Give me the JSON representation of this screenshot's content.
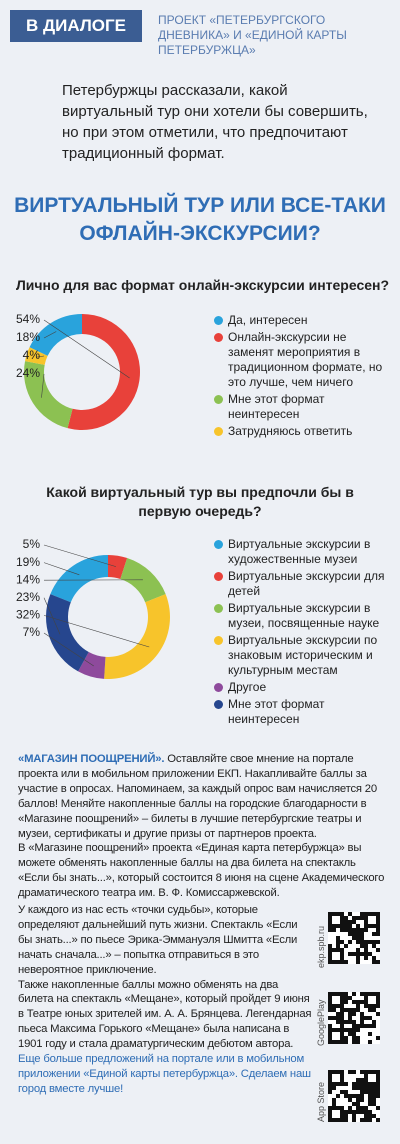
{
  "header": {
    "badge": "В ДИАЛОГЕ",
    "project": "ПРОЕКТ «ПЕТЕРБУРГСКОГО ДНЕВНИКА» И «ЕДИНОЙ КАРТЫ ПЕТЕРБУРЖЦА»"
  },
  "intro": "Петербуржцы рассказали, какой виртуальный тур они хотели бы совершить, но при этом отметили, что предпочитают традиционный формат.",
  "title": "ВИРТУАЛЬНЫЙ ТУР ИЛИ ВСЕ-ТАКИ ОФЛАЙН-ЭКСКУРСИИ?",
  "chart_data": [
    {
      "type": "donut",
      "title": "Лично для вас формат онлайн-экскурсии интересен?",
      "categories": [
        "Да, интересен",
        "Онлайн-экскурсии не заменят мероприятия в традиционном формате, но это лучше, чем ничего",
        "Мне этот формат неинтересен",
        "Затрудняюсь ответить"
      ],
      "values": [
        18,
        54,
        24,
        4
      ],
      "value_labels": [
        "18%",
        "54%",
        "24%",
        "4%"
      ],
      "colors": [
        "#29a3dc",
        "#e8413a",
        "#8cc152",
        "#f7c42b"
      ]
    },
    {
      "type": "donut",
      "title": "Какой виртуальный тур вы предпочли бы в первую очередь?",
      "categories": [
        "Виртуальные экскурсии в художественные музеи",
        "Виртуальные экскурсии для детей",
        "Виртуальные экскурсии в музеи, посвященные науке",
        "Виртуальные экскурсии по знаковым историческим и культурным местам",
        "Другое",
        "Мне этот формат неинтересен"
      ],
      "values": [
        19,
        5,
        14,
        32,
        7,
        23
      ],
      "value_labels": [
        "19%",
        "5%",
        "14%",
        "32%",
        "7%",
        "23%"
      ],
      "colors": [
        "#29a3dc",
        "#e8413a",
        "#8cc152",
        "#f7c42b",
        "#8e4a9c",
        "#26468e"
      ]
    }
  ],
  "article": {
    "lead": "«МАГАЗИН ПООЩРЕНИЙ».",
    "paragraphs": [
      "Оставляйте свое мнение на портале проекта или в мобильном приложении ЕКП. Накапливайте баллы за участие в опросах. Напоминаем, за каждый опрос вам начисляется 20 баллов! Меняйте накопленные баллы на городские благодарности в «Магазине поощрений» – билеты в лучшие петербургские театры и музеи, сертификаты и другие призы от партнеров проекта.",
      "В «Магазине поощрений» проекта «Единая карта петербуржца» вы можете обменять накопленные баллы на два билета на спектакль «Если бы знать...», который состоится 8 июня на сцене Академического драматического театра им. В. Ф. Комиссаржевской.",
      "У каждого из нас есть «точки судьбы», которые определяют дальнейший путь жизни. Спектакль «Если бы знать...» по пьесе Эрика-Эммануэля Шмитта «Если начать сначала...» – попытка отправиться в это невероятное приключение.",
      "Также накопленные баллы можно обменять на два билета на спектакль «Мещане», который пройдет 9 июня в Театре юных зрителей им. А. А. Брянцева. Легендарная пьеса Максима Горького «Мещане» была написана в 1901 году и стала драматургическим дебютом автора."
    ],
    "closing": "Еще больше предложений на портале или в мобильном приложении «Единой карты петербуржца». Сделаем наш город вместе лучше!"
  },
  "qr_labels": [
    "ekp.spb.ru",
    "GooglePlay",
    "App Store"
  ]
}
